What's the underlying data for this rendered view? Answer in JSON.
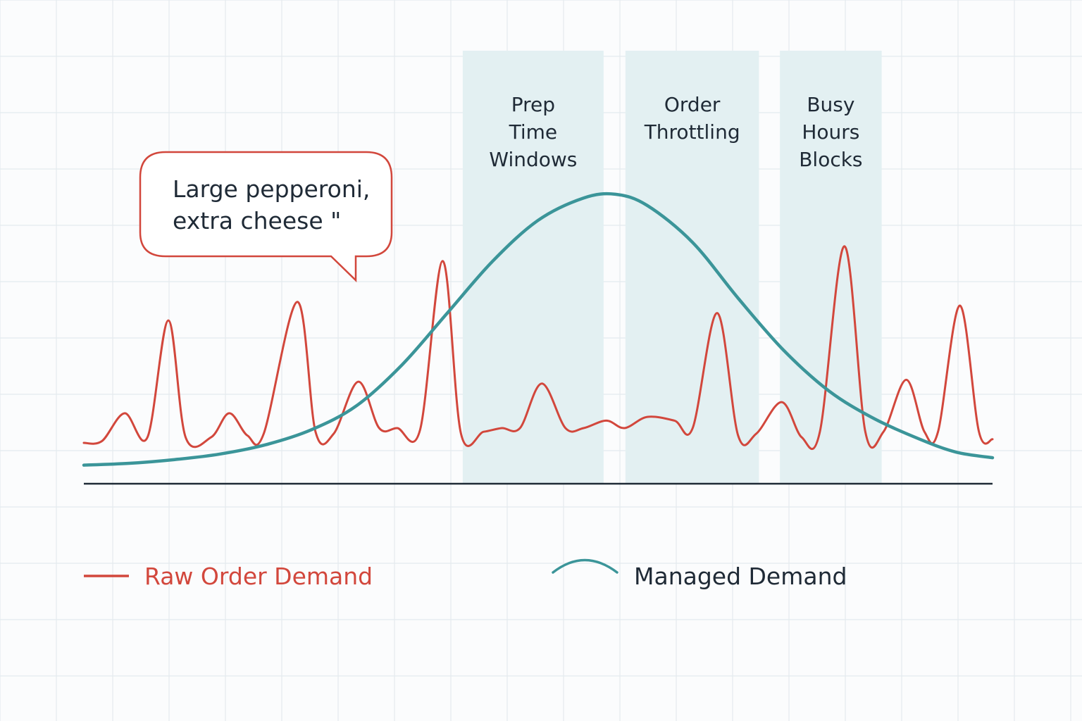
{
  "chart_data": {
    "type": "line",
    "title": "",
    "xlabel": "",
    "ylabel": "",
    "xlim": [
      0,
      100
    ],
    "ylim": [
      0,
      100
    ],
    "grid": true,
    "legend_position": "bottom",
    "series": [
      {
        "name": "Raw Order Demand",
        "color": "#d2473c",
        "points": [
          [
            0,
            11
          ],
          [
            2,
            11.5
          ],
          [
            4.5,
            19
          ],
          [
            7,
            12.5
          ],
          [
            9.3,
            44
          ],
          [
            11.2,
            12.5
          ],
          [
            14,
            12.5
          ],
          [
            16,
            19
          ],
          [
            18,
            13
          ],
          [
            19.8,
            13.5
          ],
          [
            23.5,
            49
          ],
          [
            25.5,
            14
          ],
          [
            27.5,
            13.5
          ],
          [
            30.2,
            27.5
          ],
          [
            32.5,
            15
          ],
          [
            34.5,
            15
          ],
          [
            37,
            14.5
          ],
          [
            39.5,
            60
          ],
          [
            41.5,
            13.5
          ],
          [
            44,
            14
          ],
          [
            46,
            15
          ],
          [
            48,
            15
          ],
          [
            50.4,
            27
          ],
          [
            53,
            15
          ],
          [
            55,
            15
          ],
          [
            57.5,
            17
          ],
          [
            59.5,
            15
          ],
          [
            62,
            18
          ],
          [
            65,
            17
          ],
          [
            67,
            15
          ],
          [
            69.7,
            46
          ],
          [
            72,
            13
          ],
          [
            74,
            13.5
          ],
          [
            76.8,
            22
          ],
          [
            79,
            12.5
          ],
          [
            81,
            14
          ],
          [
            83.7,
            64
          ],
          [
            86,
            14
          ],
          [
            88,
            14
          ],
          [
            90.5,
            28
          ],
          [
            92.5,
            14
          ],
          [
            94,
            14
          ],
          [
            96.4,
            48
          ],
          [
            98.5,
            14
          ],
          [
            100,
            12
          ]
        ]
      },
      {
        "name": "Managed Demand",
        "color": "#3b9599",
        "points": [
          [
            0,
            5
          ],
          [
            5,
            5.5
          ],
          [
            10,
            6.5
          ],
          [
            15,
            8
          ],
          [
            20,
            10.5
          ],
          [
            25,
            14.5
          ],
          [
            30,
            21
          ],
          [
            35,
            32
          ],
          [
            40,
            46
          ],
          [
            45,
            60
          ],
          [
            50,
            71
          ],
          [
            55,
            77
          ],
          [
            58.5,
            78
          ],
          [
            62,
            75
          ],
          [
            67,
            65
          ],
          [
            72,
            50
          ],
          [
            77,
            36
          ],
          [
            82,
            25
          ],
          [
            87,
            17.5
          ],
          [
            92,
            12
          ],
          [
            96,
            8.5
          ],
          [
            100,
            7
          ]
        ]
      }
    ],
    "shaded_regions": [
      {
        "label_lines": [
          "Prep",
          "Time",
          "Windows"
        ],
        "x_start": 41.7,
        "x_end": 57.2
      },
      {
        "label_lines": [
          "Order",
          "Throttling"
        ],
        "x_start": 59.6,
        "x_end": 74.3
      },
      {
        "label_lines": [
          "Busy",
          "Hours",
          "Blocks"
        ],
        "x_start": 76.6,
        "x_end": 87.8
      }
    ],
    "annotation": {
      "lines": [
        "Large pepperoni,",
        "extra cheese \""
      ],
      "target_x": 30
    }
  },
  "legend": {
    "raw_label": "Raw Order Demand",
    "managed_label": "Managed Demand"
  },
  "colors": {
    "raw": "#d2473c",
    "managed": "#3b9599",
    "band": "#e3f0f2",
    "grid": "#e4eaee",
    "axis": "#1e2a36",
    "text": "#1f2a36"
  }
}
